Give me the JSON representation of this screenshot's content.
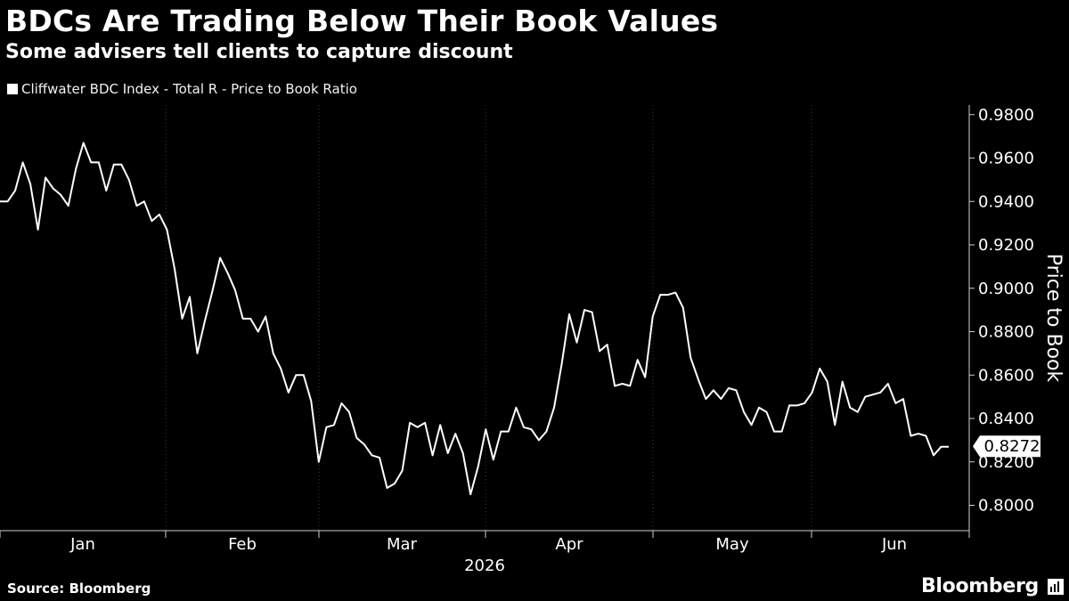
{
  "header": {
    "title": "BDCs Are Trading Below Their Book Values",
    "subtitle": "Some advisers tell clients to capture discount"
  },
  "legend": {
    "label": "Cliffwater BDC Index - Total R - Price to Book Ratio"
  },
  "footer": {
    "source": "Source: Bloomberg",
    "brand": "Bloomberg"
  },
  "colors": {
    "background": "#000000",
    "line": "#ffffff",
    "grid": "#3a3a3a"
  },
  "chart_data": {
    "type": "line",
    "title": "BDCs Are Trading Below Their Book Values",
    "subtitle": "Some advisers tell clients to capture discount",
    "ylabel": "Price to Book",
    "xlabel": "2026",
    "y_axis_side": "right",
    "ylim": [
      0.79,
      0.983
    ],
    "yticks": [
      0.98,
      0.96,
      0.94,
      0.92,
      0.9,
      0.88,
      0.86,
      0.84,
      0.82,
      0.8
    ],
    "ytick_labels": [
      "0.9800",
      "0.9600",
      "0.9400",
      "0.9200",
      "0.9000",
      "0.8800",
      "0.8600",
      "0.8400",
      "0.8200",
      "0.8000"
    ],
    "x_ticks": [
      "Jan",
      "Feb",
      "Mar",
      "Apr",
      "May",
      "Jun"
    ],
    "x_year_label": "2026",
    "grid": "vertical month boundaries (dotted)",
    "last_value_label": "0.8272",
    "series": [
      {
        "name": "Cliffwater BDC Index - Total R - Price to Book Ratio",
        "values": [
          0.94,
          0.94,
          0.945,
          0.958,
          0.948,
          0.927,
          0.951,
          0.946,
          0.943,
          0.938,
          0.955,
          0.967,
          0.958,
          0.958,
          0.945,
          0.957,
          0.957,
          0.95,
          0.938,
          0.94,
          0.931,
          0.934,
          0.927,
          0.909,
          0.886,
          0.896,
          0.87,
          0.885,
          0.899,
          0.914,
          0.907,
          0.899,
          0.886,
          0.886,
          0.88,
          0.887,
          0.87,
          0.863,
          0.852,
          0.86,
          0.86,
          0.848,
          0.82,
          0.836,
          0.837,
          0.847,
          0.843,
          0.831,
          0.828,
          0.823,
          0.822,
          0.808,
          0.81,
          0.816,
          0.838,
          0.836,
          0.838,
          0.823,
          0.837,
          0.824,
          0.833,
          0.824,
          0.805,
          0.818,
          0.835,
          0.821,
          0.834,
          0.834,
          0.845,
          0.836,
          0.835,
          0.83,
          0.834,
          0.845,
          0.865,
          0.888,
          0.875,
          0.89,
          0.889,
          0.871,
          0.874,
          0.855,
          0.856,
          0.855,
          0.867,
          0.859,
          0.887,
          0.897,
          0.897,
          0.898,
          0.891,
          0.868,
          0.858,
          0.849,
          0.853,
          0.849,
          0.854,
          0.853,
          0.843,
          0.837,
          0.845,
          0.843,
          0.834,
          0.834,
          0.846,
          0.846,
          0.847,
          0.852,
          0.863,
          0.857,
          0.837,
          0.857,
          0.845,
          0.843,
          0.85,
          0.851,
          0.852,
          0.856,
          0.847,
          0.849,
          0.832,
          0.833,
          0.832,
          0.823,
          0.827,
          0.827
        ]
      }
    ]
  }
}
